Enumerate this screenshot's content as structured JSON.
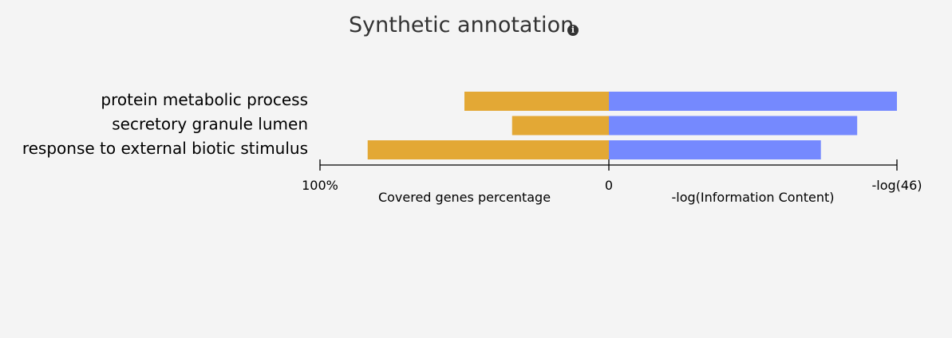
{
  "title": "Synthetic annotation",
  "info_icon": "info-icon",
  "chart_data": {
    "type": "bar",
    "layout": "diverging-horizontal",
    "categories": [
      "protein metabolic process",
      "secretory granule lumen",
      "response to external biotic stimulus"
    ],
    "series": [
      {
        "name": "Covered genes percentage",
        "side": "left",
        "color": "#e3a835",
        "values": [
          50,
          33.5,
          83.5
        ],
        "range": [
          0,
          100
        ]
      },
      {
        "name": "-log(Information Content)",
        "side": "right",
        "color": "#7589fe",
        "values": [
          1.0,
          0.862,
          0.736
        ],
        "range": [
          0,
          1
        ]
      }
    ],
    "tick_labels": {
      "left": "100%",
      "center": "0",
      "right": "-log(46)"
    },
    "xlabel_left": "Covered genes percentage",
    "xlabel_right": "-log(Information Content)"
  }
}
